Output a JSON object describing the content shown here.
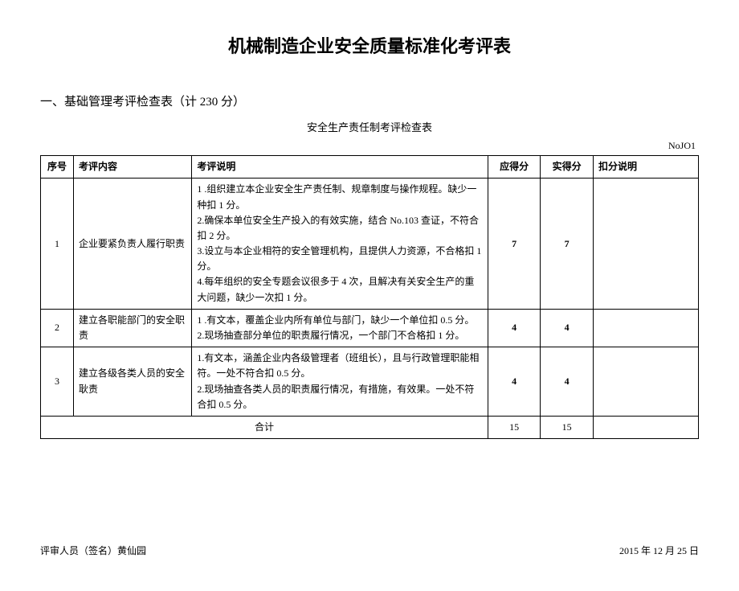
{
  "title": "机械制造企业安全质量标准化考评表",
  "sectionHeading": "一、基础管理考评检查表（计 230 分）",
  "tableCaption": "安全生产责任制考评检查表",
  "tableCode": "NoJO1",
  "headers": {
    "seq": "序号",
    "content": "考评内容",
    "desc": "考评说明",
    "should": "应得分",
    "actual": "实得分",
    "deduct": "扣分说明"
  },
  "rows": [
    {
      "seq": "1",
      "content": "企业要紧负责人履行职责",
      "desc": [
        "1    .组织建立本企业安全生产责任制、规章制度与操作规程。缺少一种扣 1 分。",
        "2.确保本单位安全生产投入的有效实施，结合 No.103 查证，不符合扣 2 分。",
        "3.设立与本企业相符的安全管理机构，且提供人力资源，不合格扣 1 分。",
        "4.每年组织的安全专题会议很多于 4 次，且解决有关安全生产的重大问题，缺少一次扣 1 分。"
      ],
      "should": "7",
      "actual": "7",
      "deduct": ""
    },
    {
      "seq": "2",
      "content": "建立各职能部门的安全职责",
      "desc": [
        "1    .有文本，覆盖企业内所有单位与部门，缺少一个单位扣 0.5 分。",
        "2.现场抽查部分单位的职责履行情况，一个部门不合格扣 1 分。"
      ],
      "should": "4",
      "actual": "4",
      "deduct": ""
    },
    {
      "seq": "3",
      "content": "建立各级各类人员的安全耿责",
      "desc": [
        "1.有文本，涵盖企业内各级管理者（班组长），且与行政管理职能相符。一处不符合扣 0.5 分。",
        "2.现场抽查各类人员的职责履行情况，有措施，有效果。一处不符合扣 0.5 分。"
      ],
      "should": "4",
      "actual": "4",
      "deduct": ""
    }
  ],
  "total": {
    "label": "合计",
    "should": "15",
    "actual": "15",
    "deduct": ""
  },
  "footer": {
    "reviewer": "评审人员（签名）黄仙园",
    "date": "2015 年 12 月 25 日"
  }
}
